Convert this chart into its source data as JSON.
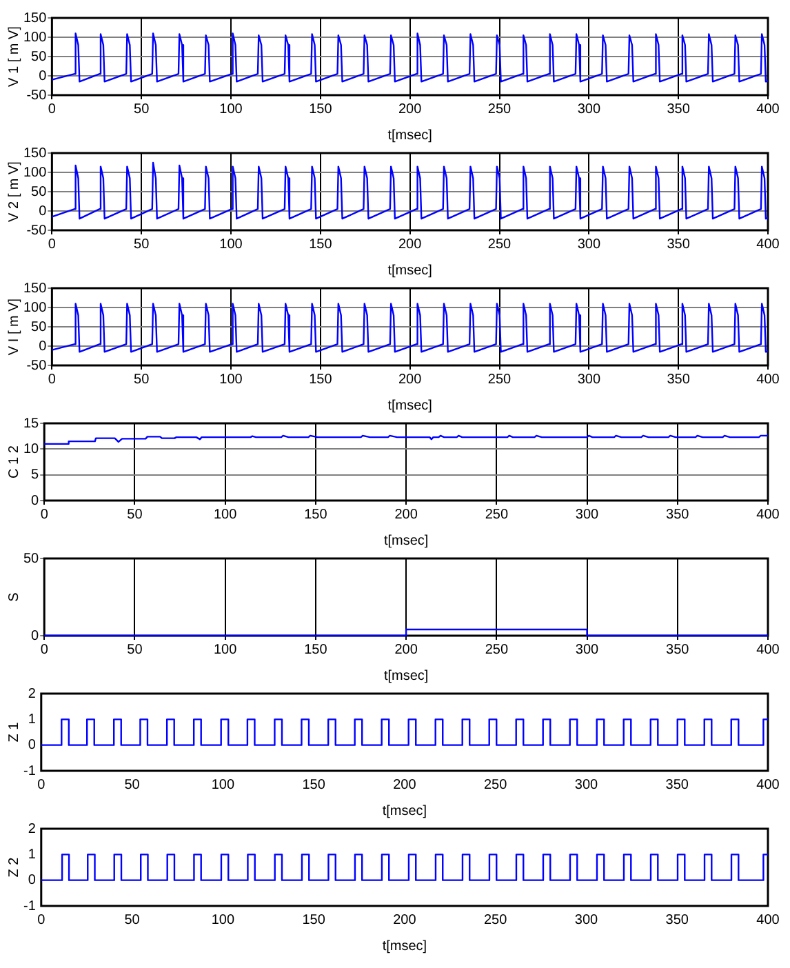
{
  "chart_data": [
    {
      "type": "line",
      "xlabel": "t[msec]",
      "ylabel": "V 1 [ m V]",
      "xlim": [
        0,
        400
      ],
      "ylim": [
        -50,
        150
      ],
      "xticks": [
        0,
        50,
        100,
        150,
        200,
        250,
        300,
        350,
        400
      ],
      "yticks": [
        -50,
        0,
        50,
        100,
        150
      ],
      "grid": true,
      "x": [
        0,
        12.7,
        13.2,
        14.7,
        15.4,
        26.7,
        27.2,
        28.7,
        29.4,
        41.5,
        42,
        43.5,
        44.2,
        56,
        56.5,
        58,
        58.7,
        70.7,
        71.2,
        72.7,
        73.4,
        85.5,
        86,
        87.5,
        88.2,
        100.5,
        101,
        102.5,
        103.2,
        115,
        115.5,
        117,
        117.7,
        130,
        130.5,
        132,
        132.7,
        144.8,
        145.3,
        146.8,
        147.5,
        159.5,
        160,
        161.5,
        162.2,
        174.1,
        174.6,
        176.1,
        176.8,
        188.9,
        189.4,
        190.9,
        191.6,
        203.7,
        204.2,
        205.7,
        206.4,
        218.5,
        219,
        220.5,
        221.2,
        233.3,
        233.8,
        235.3,
        236,
        248.1,
        248.6,
        250.1,
        250.8,
        262.9,
        263.4,
        264.9,
        265.6,
        277.7,
        278.2,
        279.7,
        280.4,
        292.5,
        293,
        294.5,
        295.2,
        307.3,
        307.8,
        309.3,
        310,
        322.1,
        322.6,
        324.1,
        324.8,
        336.9,
        337.4,
        338.9,
        339.6,
        351.7,
        352.2,
        353.7,
        354.4,
        366.5,
        367,
        368.5,
        369.2,
        381.3,
        381.8,
        383.3,
        384,
        396.1,
        396.6,
        398.1,
        398.8,
        400
      ],
      "series": [
        {
          "color": "#0000ff",
          "values": [
            -10,
            5,
            110,
            80,
            -15,
            5,
            108,
            80,
            -15,
            5,
            108,
            80,
            -15,
            5,
            110,
            80,
            -15,
            5,
            108,
            80,
            -15,
            5,
            105,
            80,
            -15,
            5,
            110,
            80,
            -15,
            5,
            105,
            80,
            -15,
            5,
            105,
            80,
            -15,
            5,
            108,
            80,
            -15,
            5,
            105,
            80,
            -15,
            5,
            105,
            80,
            -15,
            5,
            105,
            80,
            -15,
            5,
            110,
            80,
            -15,
            5,
            105,
            80,
            -15,
            5,
            108,
            80,
            -15,
            5,
            105,
            80,
            -15,
            5,
            105,
            80,
            -15,
            5,
            108,
            80,
            -15,
            5,
            108,
            80,
            -15,
            5,
            105,
            80,
            -15,
            5,
            105,
            80,
            -15,
            5,
            108,
            80,
            -15,
            5,
            105,
            80,
            -15,
            5,
            108,
            80,
            -15,
            5,
            105,
            80,
            -15,
            5,
            108,
            80,
            -15,
            -14
          ]
        }
      ]
    },
    {
      "type": "line",
      "xlabel": "t[msec]",
      "ylabel": "V 2 [ m V]",
      "xlim": [
        0,
        400
      ],
      "ylim": [
        -50,
        150
      ],
      "xticks": [
        0,
        50,
        100,
        150,
        200,
        250,
        300,
        350,
        400
      ],
      "yticks": [
        -50,
        0,
        50,
        100,
        150
      ],
      "grid": true,
      "x": [
        0,
        12.7,
        13.2,
        14.7,
        15.4,
        26.7,
        27.2,
        28.7,
        29.4,
        41.5,
        42,
        43.5,
        44.2,
        56,
        56.5,
        58,
        58.7,
        70.7,
        71.2,
        72.7,
        73.4,
        85.5,
        86,
        87.5,
        88.2,
        100.5,
        101,
        102.5,
        103.2,
        115,
        115.5,
        117,
        117.7,
        130,
        130.5,
        132,
        132.7,
        144.8,
        145.3,
        146.8,
        147.5,
        159.5,
        160,
        161.5,
        162.2,
        174.1,
        174.6,
        176.1,
        176.8,
        188.9,
        189.4,
        190.9,
        191.6,
        203.7,
        204.2,
        205.7,
        206.4,
        218.5,
        219,
        220.5,
        221.2,
        233.3,
        233.8,
        235.3,
        236,
        248.1,
        248.6,
        250.1,
        250.8,
        262.9,
        263.4,
        264.9,
        265.6,
        277.7,
        278.2,
        279.7,
        280.4,
        292.5,
        293,
        294.5,
        295.2,
        307.3,
        307.8,
        309.3,
        310,
        322.1,
        322.6,
        324.1,
        324.8,
        336.9,
        337.4,
        338.9,
        339.6,
        351.7,
        352.2,
        353.7,
        354.4,
        366.5,
        367,
        368.5,
        369.2,
        381.3,
        381.8,
        383.3,
        384,
        396.1,
        396.6,
        398.1,
        398.8,
        400
      ],
      "series": [
        {
          "color": "#0000ff",
          "values": [
            -15,
            5,
            118,
            85,
            -20,
            5,
            115,
            85,
            -20,
            5,
            115,
            85,
            -20,
            5,
            125,
            85,
            -20,
            5,
            118,
            85,
            -20,
            5,
            115,
            85,
            -20,
            5,
            115,
            85,
            -20,
            5,
            115,
            85,
            -20,
            5,
            115,
            85,
            -20,
            5,
            115,
            85,
            -20,
            5,
            115,
            85,
            -20,
            5,
            115,
            85,
            -20,
            5,
            115,
            85,
            -20,
            5,
            115,
            85,
            -20,
            5,
            115,
            85,
            -20,
            5,
            115,
            85,
            -20,
            5,
            115,
            85,
            -20,
            5,
            115,
            85,
            -20,
            5,
            115,
            85,
            -20,
            5,
            115,
            85,
            -20,
            5,
            115,
            85,
            -20,
            5,
            115,
            85,
            -20,
            5,
            115,
            85,
            -20,
            5,
            115,
            85,
            -20,
            5,
            115,
            85,
            -20,
            5,
            115,
            85,
            -20,
            5,
            115,
            85,
            -20,
            -18
          ]
        }
      ]
    },
    {
      "type": "line",
      "xlabel": "t[msec]",
      "ylabel": "V I [ m V]",
      "xlim": [
        0,
        400
      ],
      "ylim": [
        -50,
        150
      ],
      "xticks": [
        0,
        50,
        100,
        150,
        200,
        250,
        300,
        350,
        400
      ],
      "yticks": [
        -50,
        0,
        50,
        100,
        150
      ],
      "grid": true,
      "x": [
        0,
        12.7,
        13.2,
        14.7,
        15.4,
        26.7,
        27.2,
        28.7,
        29.4,
        41.5,
        42,
        43.5,
        44.2,
        56,
        56.5,
        58,
        58.7,
        70.7,
        71.2,
        72.7,
        73.4,
        85.5,
        86,
        87.5,
        88.2,
        100.5,
        101,
        102.5,
        103.2,
        115,
        115.5,
        117,
        117.7,
        130,
        130.5,
        132,
        132.7,
        144.8,
        145.3,
        146.8,
        147.5,
        159.5,
        160,
        161.5,
        162.2,
        174.1,
        174.6,
        176.1,
        176.8,
        188.9,
        189.4,
        190.9,
        191.6,
        203.7,
        204.2,
        205.7,
        206.4,
        218.5,
        219,
        220.5,
        221.2,
        233.3,
        233.8,
        235.3,
        236,
        248.1,
        248.6,
        250.1,
        250.8,
        262.9,
        263.4,
        264.9,
        265.6,
        277.7,
        278.2,
        279.7,
        280.4,
        292.5,
        293,
        294.5,
        295.2,
        307.3,
        307.8,
        309.3,
        310,
        322.1,
        322.6,
        324.1,
        324.8,
        336.9,
        337.4,
        338.9,
        339.6,
        351.7,
        352.2,
        353.7,
        354.4,
        366.5,
        367,
        368.5,
        369.2,
        381.3,
        381.8,
        383.3,
        384,
        396.1,
        396.6,
        398.1,
        398.8,
        400
      ],
      "series": [
        {
          "color": "#0000ff",
          "values": [
            -10,
            5,
            110,
            80,
            -15,
            5,
            110,
            80,
            -15,
            5,
            110,
            80,
            -15,
            5,
            110,
            80,
            -15,
            5,
            110,
            80,
            -15,
            5,
            110,
            80,
            -15,
            5,
            110,
            80,
            -15,
            5,
            110,
            80,
            -15,
            5,
            110,
            80,
            -15,
            5,
            110,
            80,
            -15,
            5,
            110,
            80,
            -15,
            5,
            110,
            80,
            -15,
            5,
            110,
            80,
            -15,
            5,
            110,
            80,
            -15,
            5,
            110,
            80,
            -15,
            5,
            110,
            80,
            -15,
            5,
            110,
            80,
            -15,
            5,
            110,
            80,
            -15,
            5,
            110,
            80,
            -15,
            5,
            110,
            80,
            -15,
            5,
            110,
            80,
            -15,
            5,
            110,
            80,
            -15,
            5,
            110,
            80,
            -15,
            5,
            110,
            80,
            -15,
            5,
            110,
            80,
            -15,
            5,
            110,
            80,
            -15,
            5,
            110,
            80,
            -15,
            -14
          ]
        }
      ]
    },
    {
      "type": "line",
      "xlabel": "t[msec]",
      "ylabel": "C 1 2",
      "xlim": [
        0,
        400
      ],
      "ylim": [
        0,
        15
      ],
      "xticks": [
        0,
        50,
        100,
        150,
        200,
        250,
        300,
        350,
        400
      ],
      "yticks": [
        0,
        5,
        10,
        15
      ],
      "grid": true,
      "x": [
        0,
        13,
        13.5,
        28,
        28.5,
        39,
        41,
        43,
        56,
        57,
        64,
        65,
        72,
        73,
        84,
        86,
        87,
        100,
        114,
        115,
        117,
        131,
        132,
        135,
        146,
        147,
        151,
        175,
        176,
        180,
        190,
        191,
        195,
        213,
        214,
        215,
        218,
        219,
        221,
        228,
        229,
        231,
        256,
        257,
        259,
        271,
        272,
        275,
        300,
        301,
        303,
        315,
        316,
        319,
        330,
        331,
        334,
        345,
        346,
        349,
        360,
        361,
        364,
        375,
        376,
        379,
        395,
        396,
        400
      ],
      "series": [
        {
          "color": "#0000ff",
          "values": [
            11,
            11,
            11.5,
            11.5,
            12.1,
            12.1,
            11.4,
            12,
            12,
            12.4,
            12.4,
            12.1,
            12.1,
            12.3,
            12.3,
            11.9,
            12.3,
            12.3,
            12.3,
            12.5,
            12.3,
            12.3,
            12.6,
            12.3,
            12.3,
            12.6,
            12.3,
            12.3,
            12.6,
            12.3,
            12.3,
            12.6,
            12.3,
            12.3,
            11.9,
            12.3,
            12.3,
            12.6,
            12.3,
            12.3,
            12.6,
            12.3,
            12.3,
            12.6,
            12.3,
            12.3,
            12.6,
            12.3,
            12.3,
            12.6,
            12.3,
            12.3,
            12.6,
            12.3,
            12.3,
            12.6,
            12.3,
            12.3,
            12.6,
            12.3,
            12.3,
            12.6,
            12.3,
            12.3,
            12.6,
            12.3,
            12.3,
            12.6,
            12.6
          ]
        }
      ]
    },
    {
      "type": "line",
      "xlabel": "t[msec]",
      "ylabel": "S",
      "xlim": [
        0,
        400
      ],
      "ylim": [
        0,
        50
      ],
      "xticks": [
        0,
        50,
        100,
        150,
        200,
        250,
        300,
        350,
        400
      ],
      "yticks": [
        0,
        50
      ],
      "grid": true,
      "x": [
        0,
        200,
        200,
        300,
        300,
        400
      ],
      "series": [
        {
          "color": "#0000ff",
          "values": [
            0,
            0,
            4,
            4,
            0,
            0
          ]
        }
      ]
    },
    {
      "type": "line",
      "xlabel": "t[msec]",
      "ylabel": "Z 1",
      "xlim": [
        0,
        400
      ],
      "ylim": [
        -1,
        2
      ],
      "xticks": [
        0,
        50,
        100,
        150,
        200,
        250,
        300,
        350,
        400
      ],
      "yticks": [
        -1,
        0,
        1,
        2
      ],
      "grid": false,
      "x": [
        0,
        11.2,
        11.2,
        15.2,
        15.2,
        25.2,
        25.2,
        29.2,
        29.2,
        40,
        40,
        44,
        44,
        54.5,
        54.5,
        58.5,
        58.5,
        69.2,
        69.2,
        73.2,
        73.2,
        84,
        84,
        88,
        88,
        99,
        99,
        103,
        103,
        113.5,
        113.5,
        117.5,
        117.5,
        128.5,
        128.5,
        132.5,
        132.5,
        143.3,
        143.3,
        147.3,
        147.3,
        158,
        158,
        162,
        162,
        172.6,
        172.6,
        176.6,
        176.6,
        187.4,
        187.4,
        191.4,
        191.4,
        202.2,
        202.2,
        206.2,
        206.2,
        217,
        217,
        221,
        221,
        231.8,
        231.8,
        235.8,
        235.8,
        246.6,
        246.6,
        250.6,
        250.6,
        261.4,
        261.4,
        265.4,
        265.4,
        276.2,
        276.2,
        280.2,
        280.2,
        291,
        291,
        295,
        295,
        305.8,
        305.8,
        309.8,
        309.8,
        320.6,
        320.6,
        324.6,
        324.6,
        335.4,
        335.4,
        339.4,
        339.4,
        350.2,
        350.2,
        354.2,
        354.2,
        365,
        365,
        369,
        369,
        379.8,
        379.8,
        383.8,
        383.8,
        397.5,
        397.5,
        400
      ],
      "series": [
        {
          "color": "#0000ff",
          "values": [
            0,
            0,
            1,
            1,
            0,
            0,
            1,
            1,
            0,
            0,
            1,
            1,
            0,
            0,
            1,
            1,
            0,
            0,
            1,
            1,
            0,
            0,
            1,
            1,
            0,
            0,
            1,
            1,
            0,
            0,
            1,
            1,
            0,
            0,
            1,
            1,
            0,
            0,
            1,
            1,
            0,
            0,
            1,
            1,
            0,
            0,
            1,
            1,
            0,
            0,
            1,
            1,
            0,
            0,
            1,
            1,
            0,
            0,
            1,
            1,
            0,
            0,
            1,
            1,
            0,
            0,
            1,
            1,
            0,
            0,
            1,
            1,
            0,
            0,
            1,
            1,
            0,
            0,
            1,
            1,
            0,
            0,
            1,
            1,
            0,
            0,
            1,
            1,
            0,
            0,
            1,
            1,
            0,
            0,
            1,
            1,
            0,
            0,
            1,
            1,
            0,
            0,
            1,
            1,
            0,
            0,
            1,
            1
          ]
        }
      ]
    },
    {
      "type": "line",
      "xlabel": "t[msec]",
      "ylabel": "Z 2",
      "xlim": [
        0,
        400
      ],
      "ylim": [
        -1,
        2
      ],
      "xticks": [
        0,
        50,
        100,
        150,
        200,
        250,
        300,
        350,
        400
      ],
      "yticks": [
        -1,
        0,
        1,
        2
      ],
      "grid": false,
      "x": [
        0,
        11.5,
        11.5,
        15.3,
        15.3,
        25.6,
        25.6,
        29.5,
        29.5,
        40.2,
        40.2,
        44.1,
        44.1,
        54.8,
        54.8,
        58.7,
        58.7,
        69.4,
        69.4,
        73.3,
        73.3,
        84.1,
        84.1,
        88,
        88,
        99.1,
        99.1,
        103,
        103,
        113.7,
        113.7,
        117.6,
        117.6,
        128.6,
        128.6,
        132.5,
        132.5,
        143.5,
        143.5,
        147.4,
        147.4,
        158.1,
        158.1,
        162,
        162,
        172.7,
        172.7,
        176.6,
        176.6,
        187.5,
        187.5,
        191.4,
        191.4,
        202.3,
        202.3,
        206.2,
        206.2,
        217.1,
        217.1,
        221,
        221,
        231.9,
        231.9,
        235.8,
        235.8,
        246.7,
        246.7,
        250.6,
        250.6,
        261.5,
        261.5,
        265.4,
        265.4,
        276.3,
        276.3,
        280.2,
        280.2,
        291.1,
        291.1,
        295,
        295,
        305.9,
        305.9,
        309.8,
        309.8,
        320.7,
        320.7,
        324.6,
        324.6,
        335.5,
        335.5,
        339.4,
        339.4,
        350.3,
        350.3,
        354.2,
        354.2,
        365.1,
        365.1,
        369,
        369,
        379.9,
        379.9,
        383.8,
        383.8,
        397.5,
        397.5,
        400
      ],
      "series": [
        {
          "color": "#0000ff",
          "values": [
            0,
            0,
            1,
            1,
            0,
            0,
            1,
            1,
            0,
            0,
            1,
            1,
            0,
            0,
            1,
            1,
            0,
            0,
            1,
            1,
            0,
            0,
            1,
            1,
            0,
            0,
            1,
            1,
            0,
            0,
            1,
            1,
            0,
            0,
            1,
            1,
            0,
            0,
            1,
            1,
            0,
            0,
            1,
            1,
            0,
            0,
            1,
            1,
            0,
            0,
            1,
            1,
            0,
            0,
            1,
            1,
            0,
            0,
            1,
            1,
            0,
            0,
            1,
            1,
            0,
            0,
            1,
            1,
            0,
            0,
            1,
            1,
            0,
            0,
            1,
            1,
            0,
            0,
            1,
            1,
            0,
            0,
            1,
            1,
            0,
            0,
            1,
            1,
            0,
            0,
            1,
            1,
            0,
            0,
            1,
            1,
            0,
            0,
            1,
            1,
            0,
            0,
            1,
            1,
            0,
            0,
            1,
            1
          ]
        }
      ]
    }
  ]
}
